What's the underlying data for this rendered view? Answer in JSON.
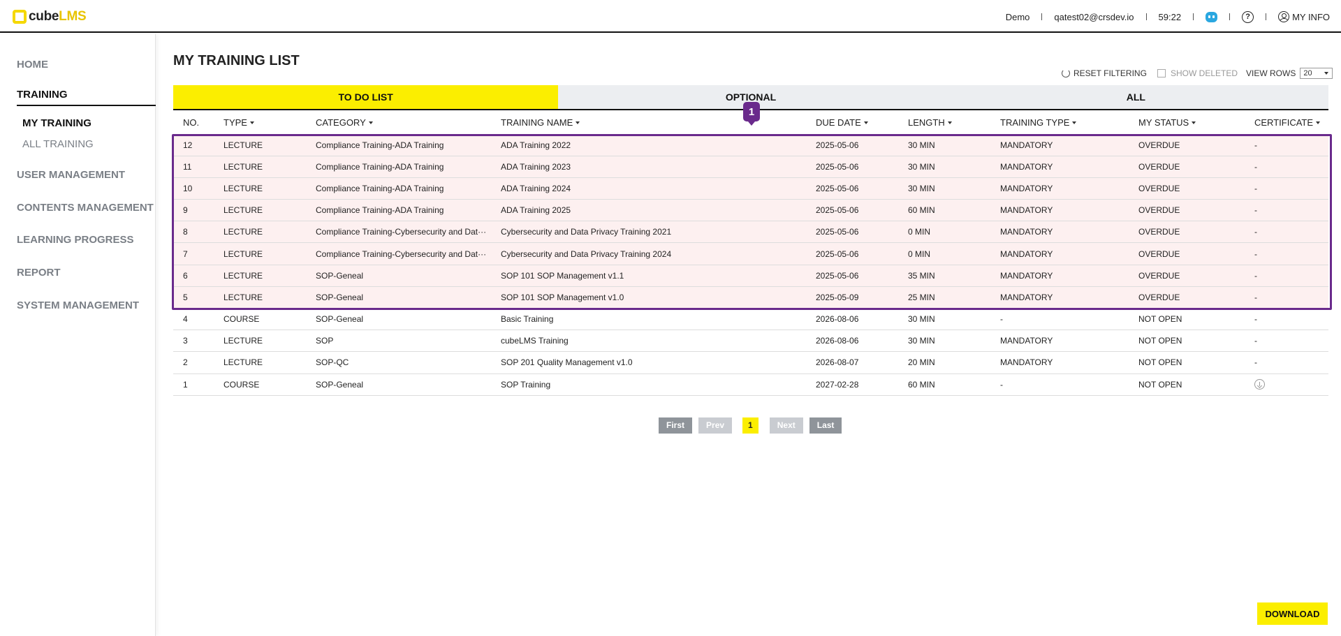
{
  "header": {
    "logo_cube": "cube",
    "logo_lms": "LMS",
    "site": "Demo",
    "email": "qatest02@crsdev.io",
    "timer": "59:22",
    "help_glyph": "?",
    "my_info": "MY INFO"
  },
  "sidebar": {
    "items": [
      {
        "label": "HOME"
      },
      {
        "label": "TRAINING"
      },
      {
        "label": "USER MANAGEMENT"
      },
      {
        "label": "CONTENTS MANAGEMENT"
      },
      {
        "label": "LEARNING PROGRESS"
      },
      {
        "label": "REPORT"
      },
      {
        "label": "SYSTEM MANAGEMENT"
      }
    ],
    "sub_items": [
      {
        "label": "MY TRAINING"
      },
      {
        "label": "ALL TRAINING"
      }
    ]
  },
  "main": {
    "title": "MY TRAINING LIST",
    "reset_label": "RESET FILTERING",
    "show_deleted_label": "SHOW DELETED",
    "view_rows_label": "VIEW ROWS",
    "view_rows_value": "20",
    "tabs": [
      {
        "label": "TO DO LIST"
      },
      {
        "label": "OPTIONAL"
      },
      {
        "label": "ALL"
      }
    ],
    "marker_label": "1",
    "columns": [
      "NO.",
      "TYPE",
      "CATEGORY",
      "TRAINING NAME",
      "DUE DATE",
      "LENGTH",
      "TRAINING TYPE",
      "MY STATUS",
      "CERTIFICATE"
    ],
    "rows": [
      {
        "no": "12",
        "type": "LECTURE",
        "category": "Compliance Training-ADA Training",
        "name": "ADA Training 2022",
        "due": "2025-05-06",
        "length": "30 MIN",
        "ttype": "MANDATORY",
        "status": "OVERDUE",
        "cert": "-"
      },
      {
        "no": "11",
        "type": "LECTURE",
        "category": "Compliance Training-ADA Training",
        "name": "ADA Training 2023",
        "due": "2025-05-06",
        "length": "30 MIN",
        "ttype": "MANDATORY",
        "status": "OVERDUE",
        "cert": "-"
      },
      {
        "no": "10",
        "type": "LECTURE",
        "category": "Compliance Training-ADA Training",
        "name": "ADA Training 2024",
        "due": "2025-05-06",
        "length": "30 MIN",
        "ttype": "MANDATORY",
        "status": "OVERDUE",
        "cert": "-"
      },
      {
        "no": "9",
        "type": "LECTURE",
        "category": "Compliance Training-ADA Training",
        "name": "ADA Training 2025",
        "due": "2025-05-06",
        "length": "60 MIN",
        "ttype": "MANDATORY",
        "status": "OVERDUE",
        "cert": "-"
      },
      {
        "no": "8",
        "type": "LECTURE",
        "category": "Compliance Training-Cybersecurity and Dat···",
        "name": "Cybersecurity and Data Privacy Training 2021",
        "due": "2025-05-06",
        "length": "0 MIN",
        "ttype": "MANDATORY",
        "status": "OVERDUE",
        "cert": "-"
      },
      {
        "no": "7",
        "type": "LECTURE",
        "category": "Compliance Training-Cybersecurity and Dat···",
        "name": "Cybersecurity and Data Privacy Training 2024",
        "due": "2025-05-06",
        "length": "0 MIN",
        "ttype": "MANDATORY",
        "status": "OVERDUE",
        "cert": "-"
      },
      {
        "no": "6",
        "type": "LECTURE",
        "category": "SOP-Geneal",
        "name": "SOP 101 SOP Management v1.1",
        "due": "2025-05-06",
        "length": "35 MIN",
        "ttype": "MANDATORY",
        "status": "OVERDUE",
        "cert": "-"
      },
      {
        "no": "5",
        "type": "LECTURE",
        "category": "SOP-Geneal",
        "name": "SOP 101 SOP Management v1.0",
        "due": "2025-05-09",
        "length": "25 MIN",
        "ttype": "MANDATORY",
        "status": "OVERDUE",
        "cert": "-"
      },
      {
        "no": "4",
        "type": "COURSE",
        "category": "SOP-Geneal",
        "name": "Basic Training",
        "due": "2026-08-06",
        "length": "30 MIN",
        "ttype": "-",
        "status": "NOT OPEN",
        "cert": "-"
      },
      {
        "no": "3",
        "type": "LECTURE",
        "category": "SOP",
        "name": "cubeLMS Training",
        "due": "2026-08-06",
        "length": "30 MIN",
        "ttype": "MANDATORY",
        "status": "NOT OPEN",
        "cert": "-"
      },
      {
        "no": "2",
        "type": "LECTURE",
        "category": "SOP-QC",
        "name": "SOP 201 Quality Management v1.0",
        "due": "2026-08-07",
        "length": "20 MIN",
        "ttype": "MANDATORY",
        "status": "NOT OPEN",
        "cert": "-"
      },
      {
        "no": "1",
        "type": "COURSE",
        "category": "SOP-Geneal",
        "name": "SOP Training",
        "due": "2027-02-28",
        "length": "60 MIN",
        "ttype": "-",
        "status": "NOT OPEN",
        "cert": "download-icon"
      }
    ],
    "pager": {
      "first": "First",
      "prev": "Prev",
      "page": "1",
      "next": "Next",
      "last": "Last"
    },
    "download_label": "DOWNLOAD"
  },
  "colors": {
    "accent": "#fbee00",
    "highlight": "#6a2a8c",
    "overdue_row": "#fdf0f0"
  }
}
